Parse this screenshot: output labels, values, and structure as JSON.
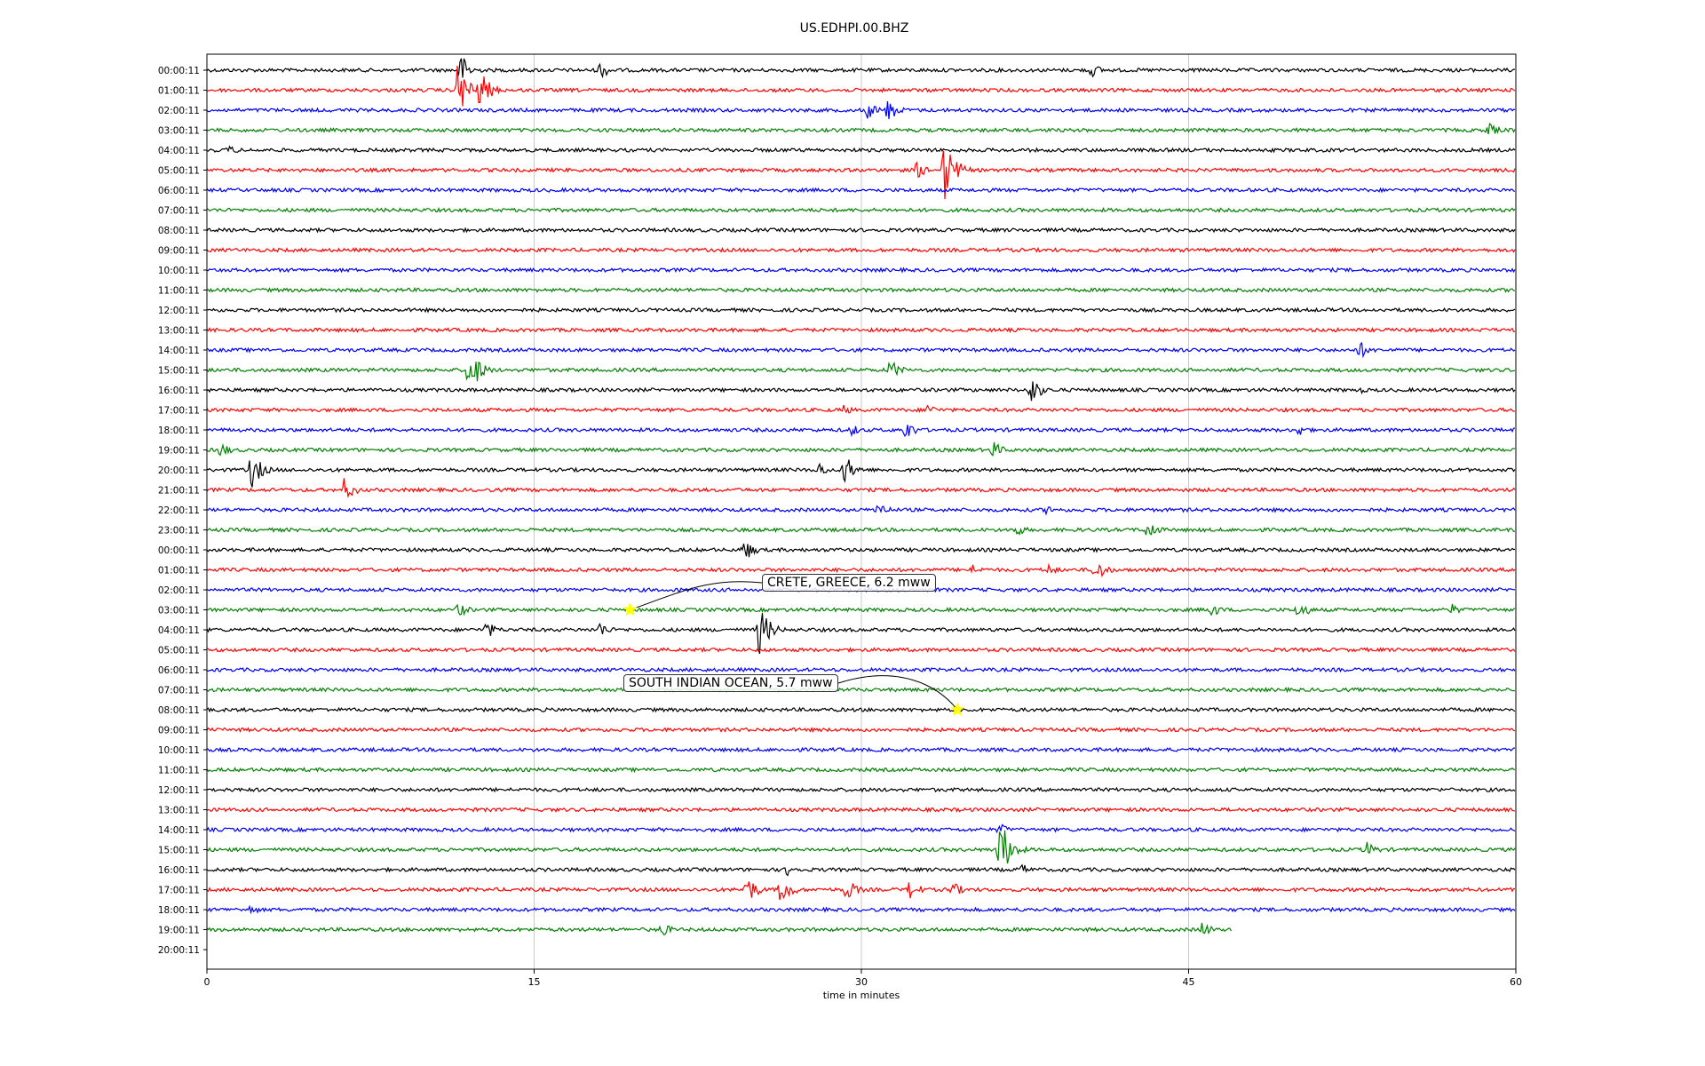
{
  "chart_data": {
    "type": "line",
    "title": "US.EDHPI.00.BHZ",
    "xlabel": "time in minutes",
    "ylabel": "",
    "xlim": [
      0,
      60
    ],
    "xticks": [
      "0",
      "15",
      "30",
      "45",
      "60"
    ],
    "xtick_values": [
      0,
      15,
      30,
      45,
      60
    ],
    "grid": "vertical",
    "trace_colors": [
      "#000000",
      "#ff0000",
      "#0000ff",
      "#008000"
    ],
    "row_labels": [
      "00:00:11",
      "01:00:11",
      "02:00:11",
      "03:00:11",
      "04:00:11",
      "05:00:11",
      "06:00:11",
      "07:00:11",
      "08:00:11",
      "09:00:11",
      "10:00:11",
      "11:00:11",
      "12:00:11",
      "13:00:11",
      "14:00:11",
      "15:00:11",
      "16:00:11",
      "17:00:11",
      "18:00:11",
      "19:00:11",
      "20:00:11",
      "21:00:11",
      "22:00:11",
      "23:00:11",
      "00:00:11",
      "01:00:11",
      "02:00:11",
      "03:00:11",
      "04:00:11",
      "05:00:11",
      "06:00:11",
      "07:00:11",
      "08:00:11",
      "09:00:11",
      "10:00:11",
      "11:00:11",
      "12:00:11",
      "13:00:11",
      "14:00:11",
      "15:00:11",
      "16:00:11",
      "17:00:11",
      "18:00:11",
      "19:00:11",
      "20:00:11"
    ],
    "trace_end_minutes": [
      60,
      60,
      60,
      60,
      60,
      60,
      60,
      60,
      60,
      60,
      60,
      60,
      60,
      60,
      60,
      60,
      60,
      60,
      60,
      60,
      60,
      60,
      60,
      60,
      60,
      60,
      60,
      60,
      60,
      60,
      60,
      60,
      60,
      60,
      60,
      60,
      60,
      60,
      60,
      60,
      60,
      60,
      60,
      47,
      0
    ],
    "bursts": [
      {
        "row": 0,
        "t": 11.6,
        "amp": 1.3
      },
      {
        "row": 0,
        "t": 18.0,
        "amp": 0.7
      },
      {
        "row": 0,
        "t": 40.5,
        "amp": 0.6
      },
      {
        "row": 1,
        "t": 11.5,
        "amp": 2.2
      },
      {
        "row": 1,
        "t": 12.5,
        "amp": 1.5
      },
      {
        "row": 2,
        "t": 30.2,
        "amp": 0.8
      },
      {
        "row": 2,
        "t": 31.2,
        "amp": 0.9
      },
      {
        "row": 3,
        "t": 58.7,
        "amp": 0.6
      },
      {
        "row": 4,
        "t": 1.0,
        "amp": 0.4
      },
      {
        "row": 5,
        "t": 33.8,
        "amp": 2.4
      },
      {
        "row": 5,
        "t": 32.5,
        "amp": 0.7
      },
      {
        "row": 14,
        "t": 52.8,
        "amp": 0.7
      },
      {
        "row": 15,
        "t": 12.0,
        "amp": 2.0
      },
      {
        "row": 15,
        "t": 31.3,
        "amp": 0.8
      },
      {
        "row": 16,
        "t": 37.7,
        "amp": 1.2
      },
      {
        "row": 16,
        "t": 52.8,
        "amp": 0.3
      },
      {
        "row": 17,
        "t": 29.2,
        "amp": 0.4
      },
      {
        "row": 17,
        "t": 33.0,
        "amp": 0.5
      },
      {
        "row": 18,
        "t": 29.5,
        "amp": 0.5
      },
      {
        "row": 18,
        "t": 32.0,
        "amp": 0.8
      },
      {
        "row": 18,
        "t": 50.0,
        "amp": 0.5
      },
      {
        "row": 19,
        "t": 0.6,
        "amp": 0.6
      },
      {
        "row": 19,
        "t": 36.0,
        "amp": 0.7
      },
      {
        "row": 20,
        "t": 2.0,
        "amp": 1.5
      },
      {
        "row": 20,
        "t": 29.2,
        "amp": 1.2
      },
      {
        "row": 20,
        "t": 28.0,
        "amp": 0.6
      },
      {
        "row": 21,
        "t": 6.3,
        "amp": 0.9
      },
      {
        "row": 22,
        "t": 30.7,
        "amp": 0.7
      },
      {
        "row": 22,
        "t": 38.5,
        "amp": 0.4
      },
      {
        "row": 23,
        "t": 37.0,
        "amp": 0.6
      },
      {
        "row": 23,
        "t": 43.1,
        "amp": 0.8
      },
      {
        "row": 24,
        "t": 24.6,
        "amp": 0.9
      },
      {
        "row": 25,
        "t": 40.7,
        "amp": 1.0
      },
      {
        "row": 25,
        "t": 38.5,
        "amp": 0.5
      },
      {
        "row": 25,
        "t": 35.0,
        "amp": 0.5
      },
      {
        "row": 27,
        "t": 11.5,
        "amp": 0.6
      },
      {
        "row": 27,
        "t": 46.0,
        "amp": 0.6
      },
      {
        "row": 27,
        "t": 50.0,
        "amp": 0.8
      },
      {
        "row": 27,
        "t": 57.0,
        "amp": 0.5
      },
      {
        "row": 28,
        "t": 25.3,
        "amp": 1.9
      },
      {
        "row": 28,
        "t": 12.8,
        "amp": 0.7
      },
      {
        "row": 28,
        "t": 18.0,
        "amp": 0.6
      },
      {
        "row": 38,
        "t": 36.3,
        "amp": 0.5
      },
      {
        "row": 39,
        "t": 36.3,
        "amp": 2.6
      },
      {
        "row": 39,
        "t": 53.1,
        "amp": 0.7
      },
      {
        "row": 40,
        "t": 26.6,
        "amp": 0.5
      },
      {
        "row": 40,
        "t": 37.3,
        "amp": 0.5
      },
      {
        "row": 41,
        "t": 24.7,
        "amp": 1.2
      },
      {
        "row": 41,
        "t": 26.3,
        "amp": 1.2
      },
      {
        "row": 41,
        "t": 29.3,
        "amp": 0.9
      },
      {
        "row": 41,
        "t": 32.2,
        "amp": 0.8
      },
      {
        "row": 41,
        "t": 34.1,
        "amp": 0.7
      },
      {
        "row": 42,
        "t": 2.0,
        "amp": 0.4
      },
      {
        "row": 43,
        "t": 20.8,
        "amp": 0.6
      },
      {
        "row": 43,
        "t": 45.6,
        "amp": 0.6
      }
    ],
    "annotations": [
      {
        "text": "CRETE, GREECE, 6.2 mww",
        "row": 27,
        "t": 19.4,
        "marker": "star",
        "marker_color": "#ffff00",
        "box_fill": "#ffffff"
      },
      {
        "text": "SOUTH INDIAN OCEAN, 5.7 mww",
        "row": 32,
        "t": 34.4,
        "marker": "star",
        "marker_color": "#ffff00",
        "box_fill": "#ffffff"
      }
    ]
  }
}
